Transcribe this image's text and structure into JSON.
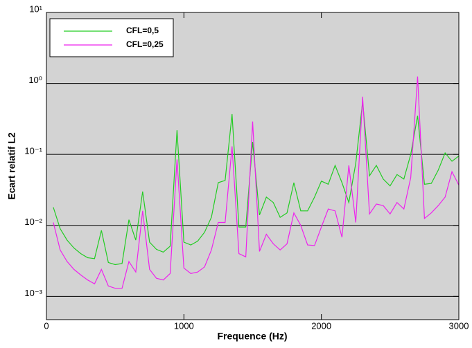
{
  "chart_data": {
    "type": "line",
    "x_label": "Frequence (Hz)",
    "y_label": "Ecart relatif L2",
    "x": [
      50,
      100,
      150,
      200,
      250,
      300,
      350,
      400,
      450,
      500,
      550,
      600,
      650,
      700,
      750,
      800,
      850,
      900,
      950,
      1000,
      1050,
      1100,
      1150,
      1200,
      1250,
      1300,
      1350,
      1400,
      1450,
      1500,
      1550,
      1600,
      1650,
      1700,
      1750,
      1800,
      1850,
      1900,
      1950,
      2000,
      2050,
      2100,
      2150,
      2200,
      2250,
      2300,
      2350,
      2400,
      2450,
      2500,
      2550,
      2600,
      2650,
      2700,
      2750,
      2800,
      2850,
      2900,
      2950,
      3000
    ],
    "series": [
      {
        "name": "CFL=0,5",
        "color": "#22cc22",
        "values": [
          0.018,
          0.009,
          0.0062,
          0.0048,
          0.004,
          0.0035,
          0.0034,
          0.0085,
          0.003,
          0.0028,
          0.0029,
          0.012,
          0.0062,
          0.03,
          0.0058,
          0.0046,
          0.0042,
          0.0051,
          0.22,
          0.0058,
          0.0053,
          0.006,
          0.008,
          0.013,
          0.04,
          0.043,
          0.37,
          0.0095,
          0.0095,
          0.15,
          0.014,
          0.025,
          0.021,
          0.013,
          0.015,
          0.04,
          0.016,
          0.016,
          0.025,
          0.042,
          0.038,
          0.07,
          0.04,
          0.021,
          0.075,
          0.55,
          0.05,
          0.07,
          0.045,
          0.036,
          0.052,
          0.045,
          0.1,
          0.35,
          0.038,
          0.039,
          0.06,
          0.105,
          0.08,
          0.095
        ]
      },
      {
        "name": "CFL=0,25",
        "color": "#ee22ee",
        "values": [
          0.011,
          0.0045,
          0.0031,
          0.0024,
          0.002,
          0.0017,
          0.0015,
          0.0024,
          0.0014,
          0.0013,
          0.0013,
          0.0031,
          0.0022,
          0.016,
          0.0024,
          0.0018,
          0.0017,
          0.0021,
          0.085,
          0.0025,
          0.0021,
          0.0022,
          0.0026,
          0.0045,
          0.011,
          0.011,
          0.13,
          0.004,
          0.0036,
          0.29,
          0.0043,
          0.0075,
          0.0055,
          0.0045,
          0.0055,
          0.015,
          0.01,
          0.0053,
          0.0052,
          0.0095,
          0.017,
          0.016,
          0.0068,
          0.07,
          0.011,
          0.65,
          0.0145,
          0.02,
          0.019,
          0.0145,
          0.021,
          0.017,
          0.047,
          1.25,
          0.0125,
          0.015,
          0.019,
          0.025,
          0.057,
          0.037
        ]
      }
    ],
    "xlim": [
      0,
      3000
    ],
    "xticks": [
      0,
      1000,
      2000,
      3000
    ],
    "ylim": [
      0.00047,
      10
    ],
    "log_y": true,
    "yticks": [
      {
        "value": 0.001,
        "label": "10⁻³"
      },
      {
        "value": 0.01,
        "label": "10⁻²"
      },
      {
        "value": 0.1,
        "label": "10⁻¹"
      },
      {
        "value": 1,
        "label": "10⁰"
      },
      {
        "value": 10,
        "label": "10¹"
      }
    ],
    "grid": true,
    "background": "#d3d3d3",
    "legend": "upper-left"
  }
}
